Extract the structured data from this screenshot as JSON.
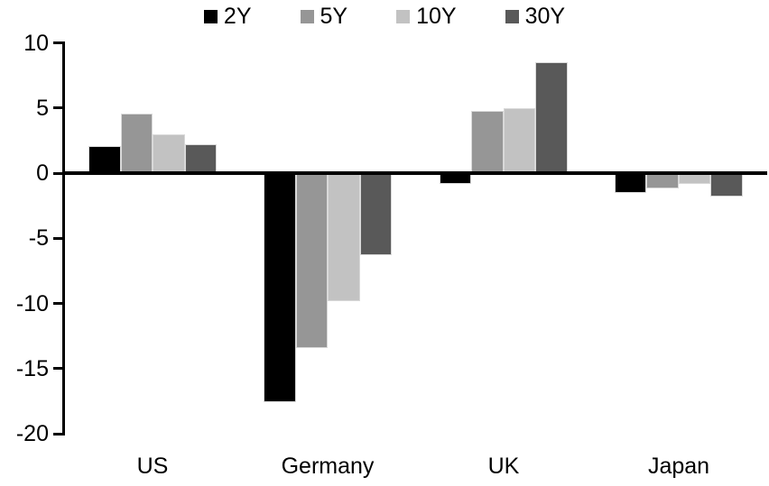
{
  "chart_data": {
    "type": "bar",
    "title": "",
    "xlabel": "",
    "ylabel": "",
    "categories": [
      "US",
      "Germany",
      "UK",
      "Japan"
    ],
    "series": [
      {
        "name": "2Y",
        "color": "#000000",
        "values": [
          2.1,
          -17.6,
          -0.8,
          -1.5
        ]
      },
      {
        "name": "5Y",
        "color": "#969696",
        "values": [
          4.6,
          -13.4,
          4.8,
          -1.2
        ]
      },
      {
        "name": "10Y",
        "color": "#c2c2c2",
        "values": [
          3.0,
          -9.8,
          5.0,
          -0.8
        ]
      },
      {
        "name": "30Y",
        "color": "#595959",
        "values": [
          2.2,
          -6.3,
          8.5,
          -1.8
        ]
      }
    ],
    "ylim": [
      -20,
      10
    ],
    "yticks": [
      10,
      5,
      0,
      -5,
      -10,
      -15,
      -20
    ],
    "grid": false,
    "legend_position": "top",
    "baseline_value": 0,
    "axis_color": "#000000",
    "background_color": "#ffffff"
  }
}
